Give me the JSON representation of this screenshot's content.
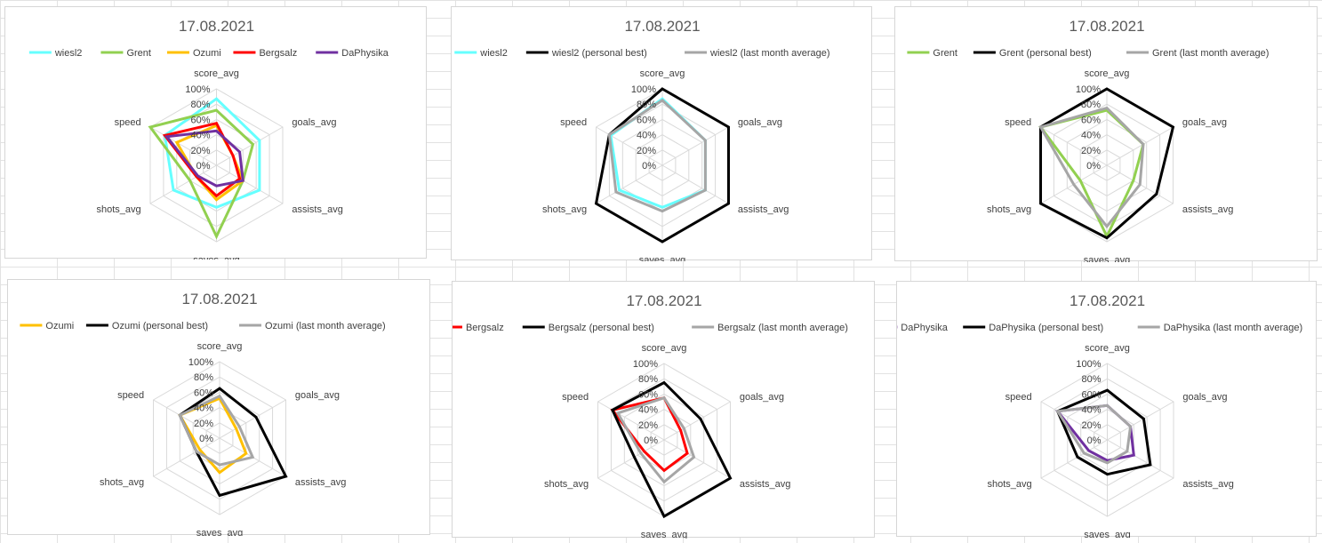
{
  "chart_data": [
    {
      "type": "radar",
      "title": "17.08.2021",
      "axes": [
        "score_avg",
        "goals_avg",
        "assists_avg",
        "saves_avg",
        "shots_avg",
        "speed"
      ],
      "ticks": [
        "0%",
        "20%",
        "40%",
        "60%",
        "80%",
        "100%"
      ],
      "ylim": [
        0,
        100
      ],
      "grid": true,
      "legend": "top",
      "series": [
        {
          "name": "wiesl2",
          "color": "#66ffff",
          "values": [
            87,
            65,
            65,
            55,
            65,
            78
          ]
        },
        {
          "name": "Grent",
          "color": "#92d050",
          "values": [
            72,
            55,
            40,
            93,
            40,
            100
          ]
        },
        {
          "name": "Ozumi",
          "color": "#ffc000",
          "values": [
            52,
            25,
            40,
            45,
            30,
            60
          ]
        },
        {
          "name": "Bergsalz",
          "color": "#ff0000",
          "values": [
            55,
            25,
            35,
            40,
            30,
            78
          ]
        },
        {
          "name": "DaPhysika",
          "color": "#7030a0",
          "values": [
            45,
            35,
            40,
            27,
            28,
            75
          ]
        }
      ]
    },
    {
      "type": "radar",
      "title": "17.08.2021",
      "axes": [
        "score_avg",
        "goals_avg",
        "assists_avg",
        "saves_avg",
        "shots_avg",
        "speed"
      ],
      "ticks": [
        "0%",
        "20%",
        "40%",
        "60%",
        "80%",
        "100%"
      ],
      "ylim": [
        0,
        100
      ],
      "grid": true,
      "legend": "top",
      "series": [
        {
          "name": "wiesl2",
          "color": "#66ffff",
          "values": [
            87,
            65,
            65,
            55,
            65,
            78
          ]
        },
        {
          "name": "wiesl2 (personal best)",
          "color": "#000000",
          "values": [
            100,
            100,
            100,
            100,
            100,
            80
          ]
        },
        {
          "name": "wiesl2 (last month average)",
          "color": "#a6a6a6",
          "values": [
            85,
            65,
            65,
            60,
            70,
            80
          ]
        }
      ]
    },
    {
      "type": "radar",
      "title": "17.08.2021",
      "axes": [
        "score_avg",
        "goals_avg",
        "assists_avg",
        "saves_avg",
        "shots_avg",
        "speed"
      ],
      "ticks": [
        "0%",
        "20%",
        "40%",
        "60%",
        "80%",
        "100%"
      ],
      "ylim": [
        0,
        100
      ],
      "grid": true,
      "legend": "top",
      "series": [
        {
          "name": "Grent",
          "color": "#92d050",
          "values": [
            72,
            55,
            40,
            93,
            40,
            100
          ]
        },
        {
          "name": "Grent (personal best)",
          "color": "#000000",
          "values": [
            100,
            100,
            75,
            95,
            100,
            100
          ]
        },
        {
          "name": "Grent (last month average)",
          "color": "#a6a6a6",
          "values": [
            75,
            55,
            50,
            80,
            50,
            100
          ]
        }
      ]
    },
    {
      "type": "radar",
      "title": "17.08.2021",
      "axes": [
        "score_avg",
        "goals_avg",
        "assists_avg",
        "saves_avg",
        "shots_avg",
        "speed"
      ],
      "ticks": [
        "0%",
        "20%",
        "40%",
        "60%",
        "80%",
        "100%"
      ],
      "ylim": [
        0,
        100
      ],
      "grid": true,
      "legend": "top",
      "series": [
        {
          "name": "Ozumi",
          "color": "#ffc000",
          "values": [
            52,
            25,
            40,
            45,
            30,
            60
          ]
        },
        {
          "name": "Ozumi (personal best)",
          "color": "#000000",
          "values": [
            65,
            55,
            100,
            75,
            35,
            60
          ]
        },
        {
          "name": "Ozumi (last month average)",
          "color": "#a6a6a6",
          "values": [
            55,
            30,
            50,
            35,
            35,
            60
          ]
        }
      ]
    },
    {
      "type": "radar",
      "title": "17.08.2021",
      "axes": [
        "score_avg",
        "goals_avg",
        "assists_avg",
        "saves_avg",
        "shots_avg",
        "speed"
      ],
      "ticks": [
        "0%",
        "20%",
        "40%",
        "60%",
        "80%",
        "100%"
      ],
      "ylim": [
        0,
        100
      ],
      "grid": true,
      "legend": "top",
      "series": [
        {
          "name": "Bergsalz",
          "color": "#ff0000",
          "values": [
            55,
            25,
            35,
            40,
            30,
            78
          ]
        },
        {
          "name": "Bergsalz (personal best)",
          "color": "#000000",
          "values": [
            75,
            55,
            100,
            100,
            45,
            78
          ]
        },
        {
          "name": "Bergsalz (last month average)",
          "color": "#a6a6a6",
          "values": [
            55,
            30,
            45,
            55,
            35,
            70
          ]
        }
      ]
    },
    {
      "type": "radar",
      "title": "17.08.2021",
      "axes": [
        "score_avg",
        "goals_avg",
        "assists_avg",
        "saves_avg",
        "shots_avg",
        "speed"
      ],
      "ticks": [
        "0%",
        "20%",
        "40%",
        "60%",
        "80%",
        "100%"
      ],
      "ylim": [
        0,
        100
      ],
      "grid": true,
      "legend": "top",
      "series": [
        {
          "name": "DaPhysika",
          "color": "#7030a0",
          "values": [
            45,
            35,
            40,
            27,
            28,
            75
          ]
        },
        {
          "name": "DaPhysika (personal best)",
          "color": "#000000",
          "values": [
            65,
            55,
            65,
            45,
            45,
            75
          ]
        },
        {
          "name": "DaPhysika (last month average)",
          "color": "#a6a6a6",
          "values": [
            45,
            35,
            30,
            30,
            35,
            75
          ]
        }
      ]
    }
  ]
}
